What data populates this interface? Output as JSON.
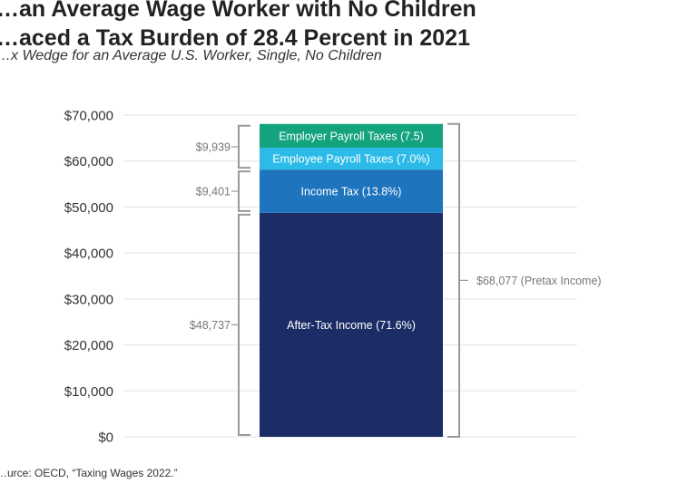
{
  "title": {
    "line1": "…an Average Wage Worker with No Children",
    "line2": "…aced a Tax Burden of 28.4 Percent in 2021"
  },
  "subtitle": "…x Wedge for an Average U.S. Worker, Single, No Children",
  "source": "…urce: OECD, “Taxing Wages 2022.”",
  "colors": {
    "after_tax": "#1b2c66",
    "income_tax": "#1e74bd",
    "employee_payroll": "#2cbbe8",
    "employer_payroll": "#14a37f",
    "bracket": "#999999",
    "grid": "#e2e2e2",
    "axis_text": "#333333",
    "annotation_text": "#777777"
  },
  "chart_data": {
    "type": "bar",
    "stacked": true,
    "categories": [
      ""
    ],
    "ylim": [
      0,
      70000
    ],
    "yticks": [
      0,
      10000,
      20000,
      30000,
      40000,
      50000,
      60000,
      70000
    ],
    "ytick_labels": [
      "$0",
      "$10,000",
      "$20,000",
      "$30,000",
      "$40,000",
      "$50,000",
      "$60,000",
      "$70,000"
    ],
    "grid": true,
    "series": [
      {
        "name": "After-Tax Income (71.6%)",
        "value": 48737,
        "color_key": "after_tax"
      },
      {
        "name": "Income Tax (13.8%)",
        "value": 9401,
        "color_key": "income_tax"
      },
      {
        "name": "Employee Payroll Taxes (7.0%)",
        "value": 4765,
        "color_key": "employee_payroll"
      },
      {
        "name": "Employer Payroll Taxes (7.5)",
        "value": 5174,
        "color_key": "employer_payroll"
      }
    ],
    "annotations": {
      "after_tax": {
        "label": "$48,737",
        "from": 0,
        "to": 48737
      },
      "income_tax": {
        "label": "$9,401",
        "from": 48737,
        "to": 58138
      },
      "payroll": {
        "label": "$9,939",
        "from": 58138,
        "to": 68077
      },
      "pretax": {
        "label": "$68,077 (Pretax Income)",
        "from": 0,
        "to": 68077
      }
    }
  }
}
